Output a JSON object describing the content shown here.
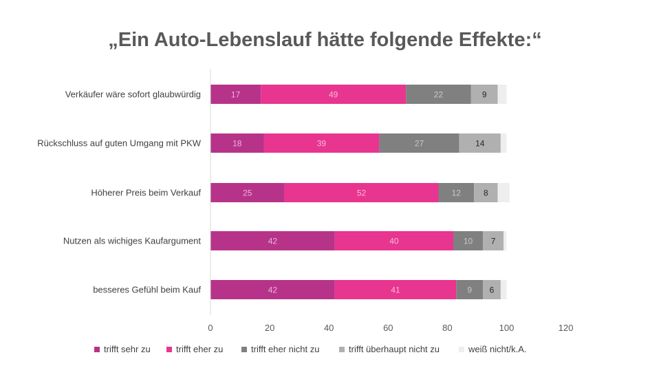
{
  "title": "„Ein Auto-Lebenslauf hätte folgende Effekte:“",
  "colors": {
    "trifft_sehr_zu": "#b7338a",
    "trifft_eher_zu": "#e8358f",
    "trifft_eher_nicht_zu": "#808080",
    "trifft_ueberhaupt_nicht_zu": "#b0b0b0",
    "weiss_nicht": "#eeeeee"
  },
  "chart_data": {
    "type": "bar",
    "orientation": "horizontal",
    "stacked": true,
    "categories": [
      "Verkäufer wäre sofort glaubwürdig",
      "Rückschluss auf guten Umgang mit PKW",
      "Höherer Preis beim Verkauf",
      "Nutzen als wichiges Kaufargument",
      "besseres Gefühl beim Kauf"
    ],
    "series": [
      {
        "name": "trifft sehr zu",
        "values": [
          17,
          18,
          25,
          42,
          42
        ],
        "color": "#b7338a",
        "label_color": "#e6b8d6"
      },
      {
        "name": "trifft eher zu",
        "values": [
          49,
          39,
          52,
          40,
          41
        ],
        "color": "#e8358f",
        "label_color": "#f6bcd9"
      },
      {
        "name": "trifft eher nicht zu",
        "values": [
          22,
          27,
          12,
          10,
          9
        ],
        "color": "#808080",
        "label_color": "#c8c8c8"
      },
      {
        "name": "trifft überhaupt nicht zu",
        "values": [
          9,
          14,
          8,
          7,
          6
        ],
        "color": "#b0b0b0",
        "label_color": "#262626"
      },
      {
        "name": "weiß nicht/k.A.",
        "values": [
          3,
          2,
          4,
          1,
          2
        ],
        "color": "#eeeeee",
        "label_color": ""
      }
    ],
    "show_value_labels": [
      true,
      true,
      true,
      true,
      false
    ],
    "xlim": [
      0,
      120
    ],
    "xticks": [
      "0",
      "20",
      "40",
      "60",
      "80",
      "100",
      "120"
    ],
    "grid": false,
    "legend_position": "bottom"
  }
}
